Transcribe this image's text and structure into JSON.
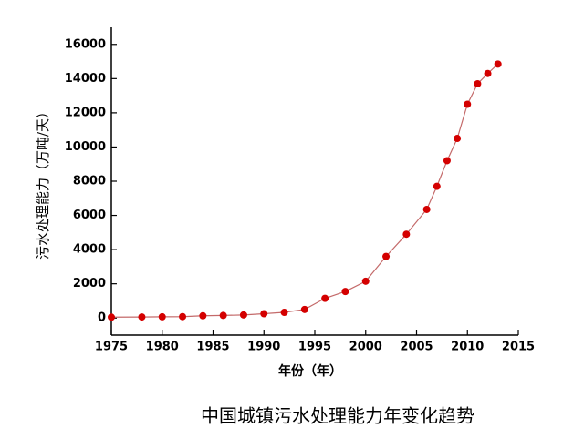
{
  "chart_data": {
    "type": "line",
    "title": "中国城镇污水处理能力年变化趋势",
    "x_label": "年份（年）",
    "y_label": "污水处理能力（万吨/天）",
    "x": [
      1975,
      1978,
      1980,
      1982,
      1984,
      1986,
      1988,
      1990,
      1992,
      1994,
      1996,
      1998,
      2000,
      2002,
      2004,
      2006,
      2007,
      2008,
      2009,
      2010,
      2011,
      2012,
      2013
    ],
    "values": [
      50,
      60,
      70,
      80,
      130,
      150,
      180,
      250,
      330,
      500,
      1150,
      1550,
      2150,
      3600,
      4900,
      6350,
      7700,
      9200,
      10500,
      12500,
      13700,
      14300,
      14850
    ],
    "line_color": "#c46a6a",
    "marker_color": "#d40000",
    "xlim": [
      1975,
      2015
    ],
    "xticks": [
      1975,
      1980,
      1985,
      1990,
      1995,
      2000,
      2005,
      2010,
      2015
    ],
    "ylim": [
      -1000,
      17000
    ],
    "yticks": [
      0,
      2000,
      4000,
      6000,
      8000,
      10000,
      12000,
      14000,
      16000
    ]
  }
}
